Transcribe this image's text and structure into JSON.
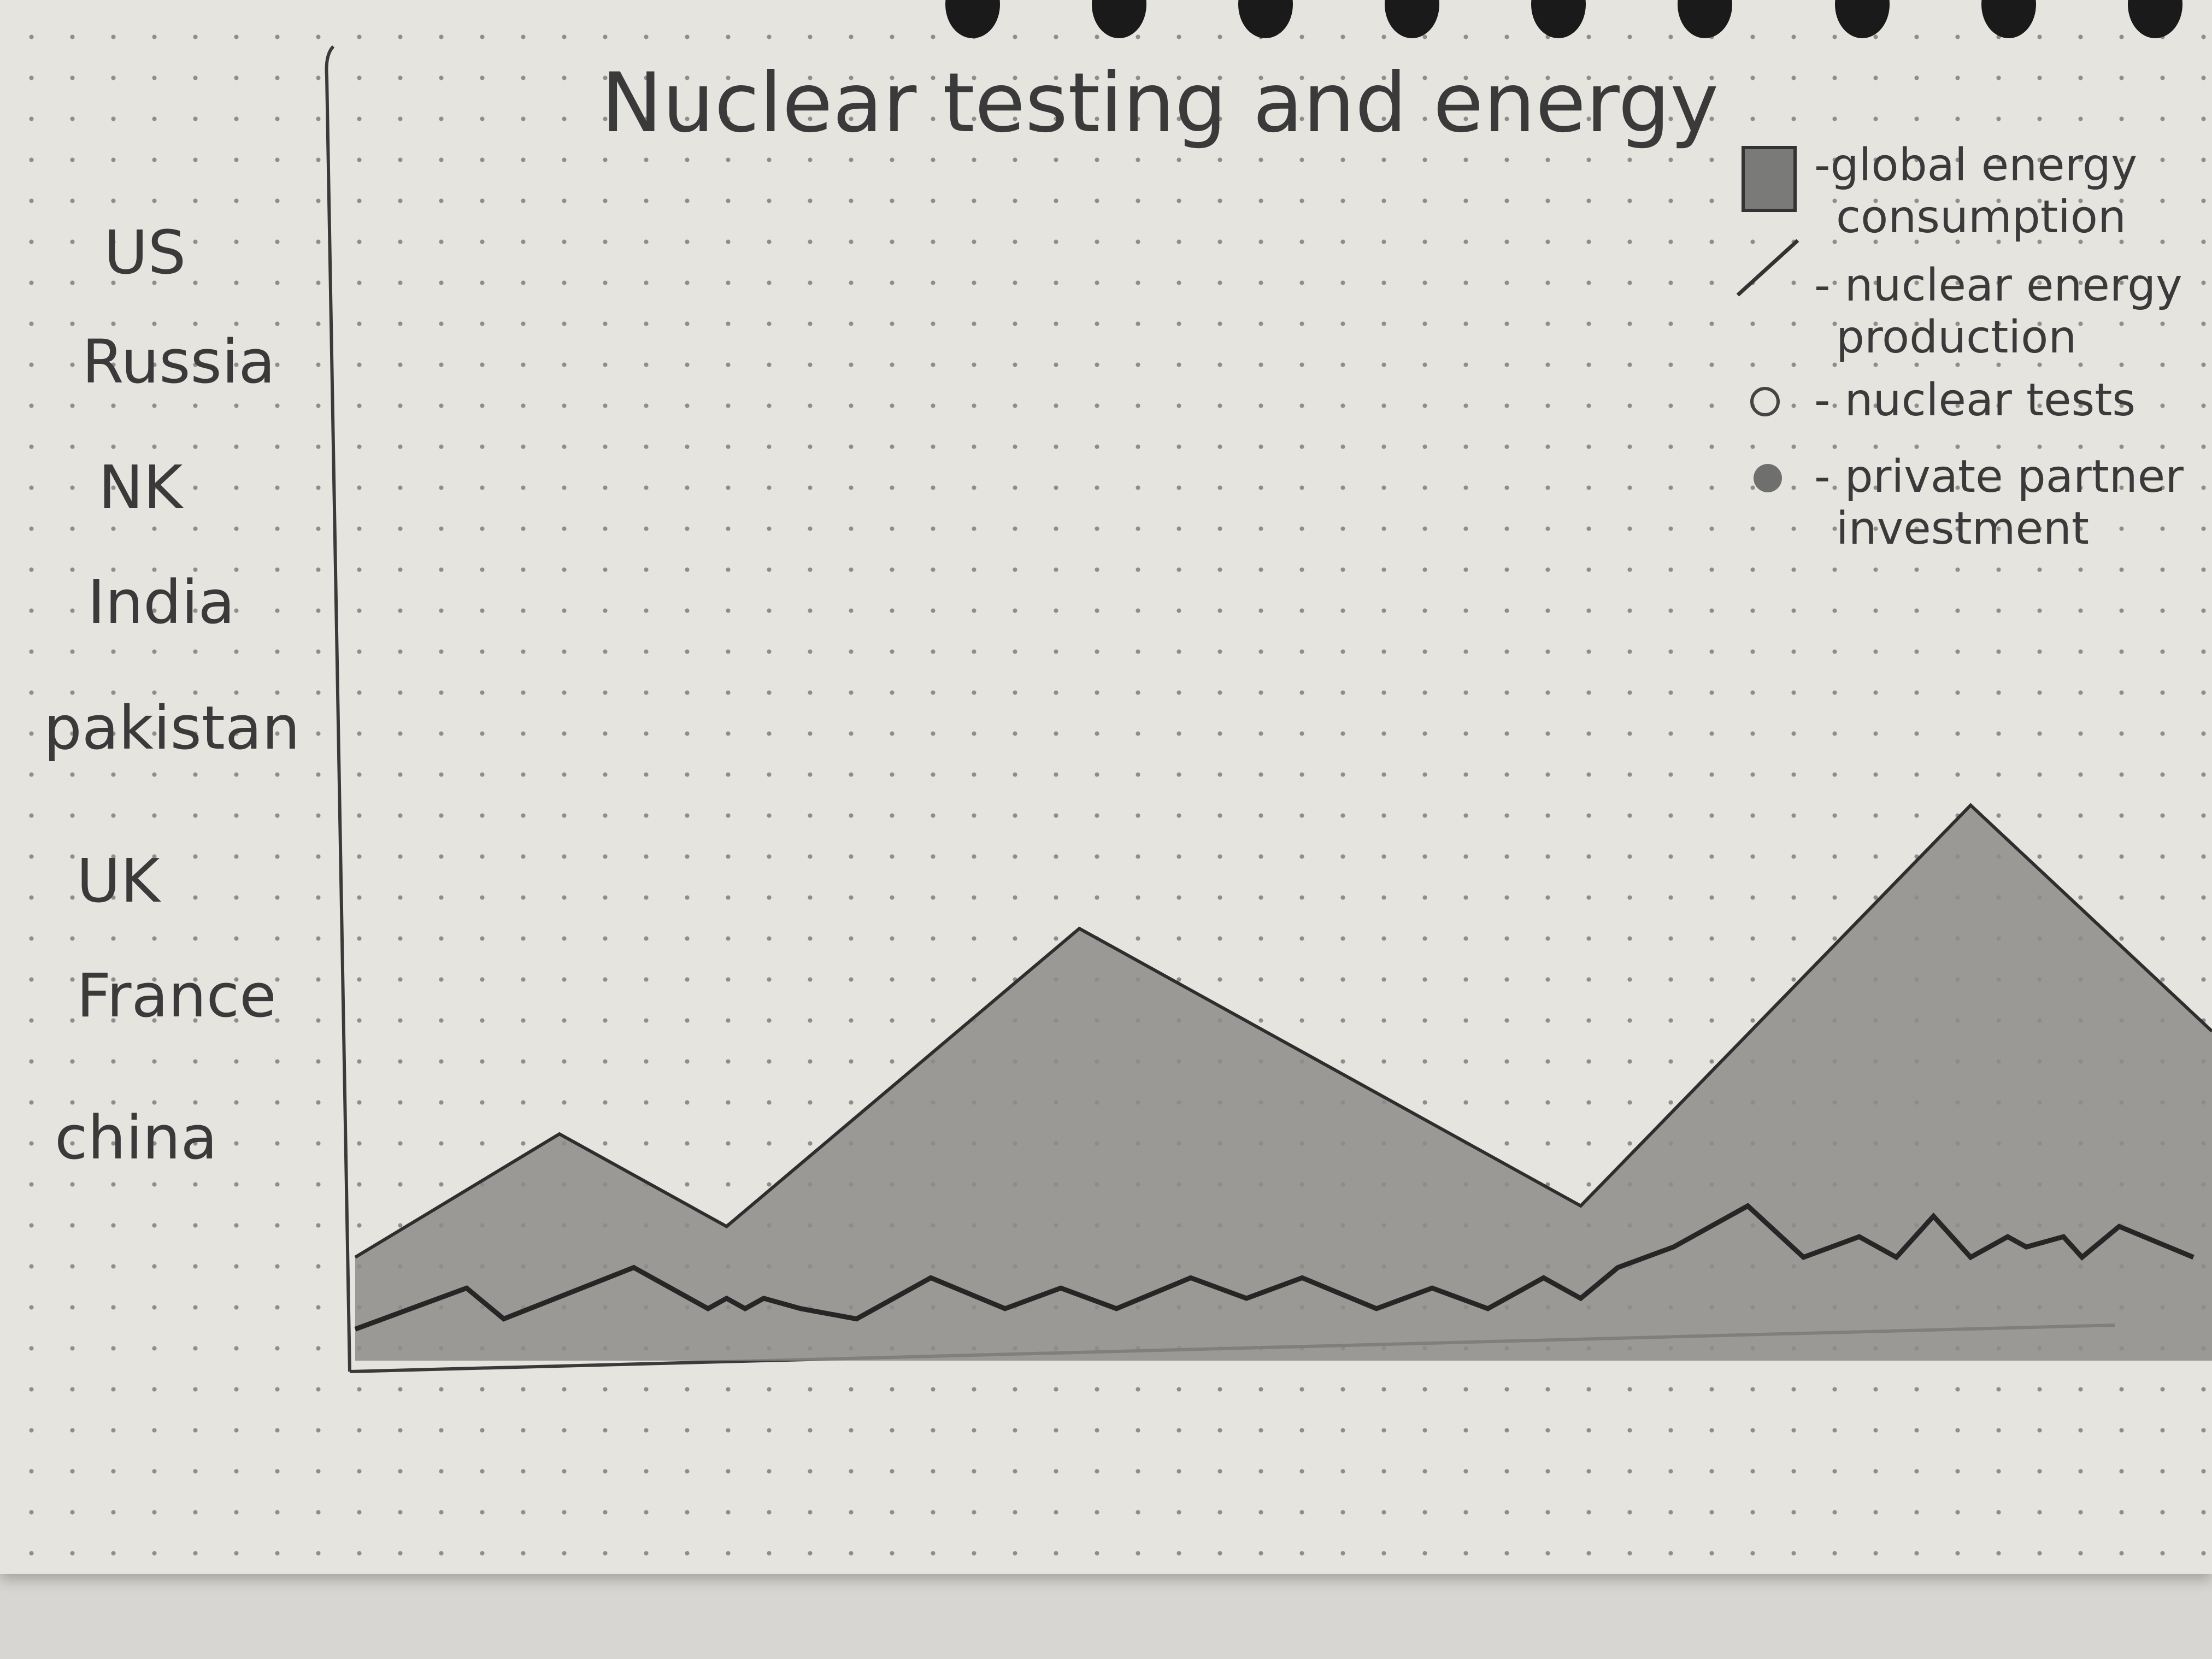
{
  "chart_data": {
    "type": "area",
    "title": "Nuclear testing and energy",
    "y_categories": [
      "US",
      "Russia",
      "NK",
      "India",
      "pakistan",
      "UK",
      "France",
      "china"
    ],
    "series": [
      {
        "name": "global energy consumption",
        "style": "filled-area",
        "x": [
          0,
          0.11,
          0.2,
          0.39,
          0.66,
          0.87,
          1.0
        ],
        "values": [
          0.09,
          0.21,
          0.12,
          0.41,
          0.14,
          0.53,
          0.31
        ]
      },
      {
        "name": "nuclear energy production",
        "style": "line",
        "x": [
          0,
          0.06,
          0.08,
          0.15,
          0.19,
          0.2,
          0.21,
          0.22,
          0.24,
          0.27,
          0.31,
          0.35,
          0.38,
          0.41,
          0.45,
          0.48,
          0.51,
          0.55,
          0.58,
          0.61,
          0.64,
          0.66,
          0.68,
          0.71,
          0.75,
          0.78,
          0.81,
          0.83,
          0.85,
          0.87,
          0.89,
          0.9,
          0.92,
          0.93,
          0.95,
          0.99
        ],
        "values": [
          0.02,
          0.06,
          0.03,
          0.08,
          0.04,
          0.05,
          0.04,
          0.05,
          0.04,
          0.03,
          0.07,
          0.04,
          0.06,
          0.04,
          0.07,
          0.05,
          0.07,
          0.04,
          0.06,
          0.04,
          0.07,
          0.05,
          0.08,
          0.1,
          0.14,
          0.09,
          0.11,
          0.09,
          0.13,
          0.09,
          0.11,
          0.1,
          0.11,
          0.09,
          0.12,
          0.09
        ]
      }
    ],
    "legend": {
      "placement": "top-right",
      "items": [
        {
          "symbol": "filled-square",
          "label_lines": [
            "-global energy",
            "consumption"
          ]
        },
        {
          "symbol": "line",
          "label_lines": [
            "- nuclear energy",
            "production"
          ]
        },
        {
          "symbol": "open-circle",
          "label_lines": [
            "- nuclear tests"
          ]
        },
        {
          "symbol": "filled-circle",
          "label_lines": [
            "- private partner",
            "investment"
          ]
        }
      ]
    },
    "grid": false,
    "colors": {
      "area_fill": "#8c8c8a",
      "ink": "#2e2e2e"
    }
  }
}
